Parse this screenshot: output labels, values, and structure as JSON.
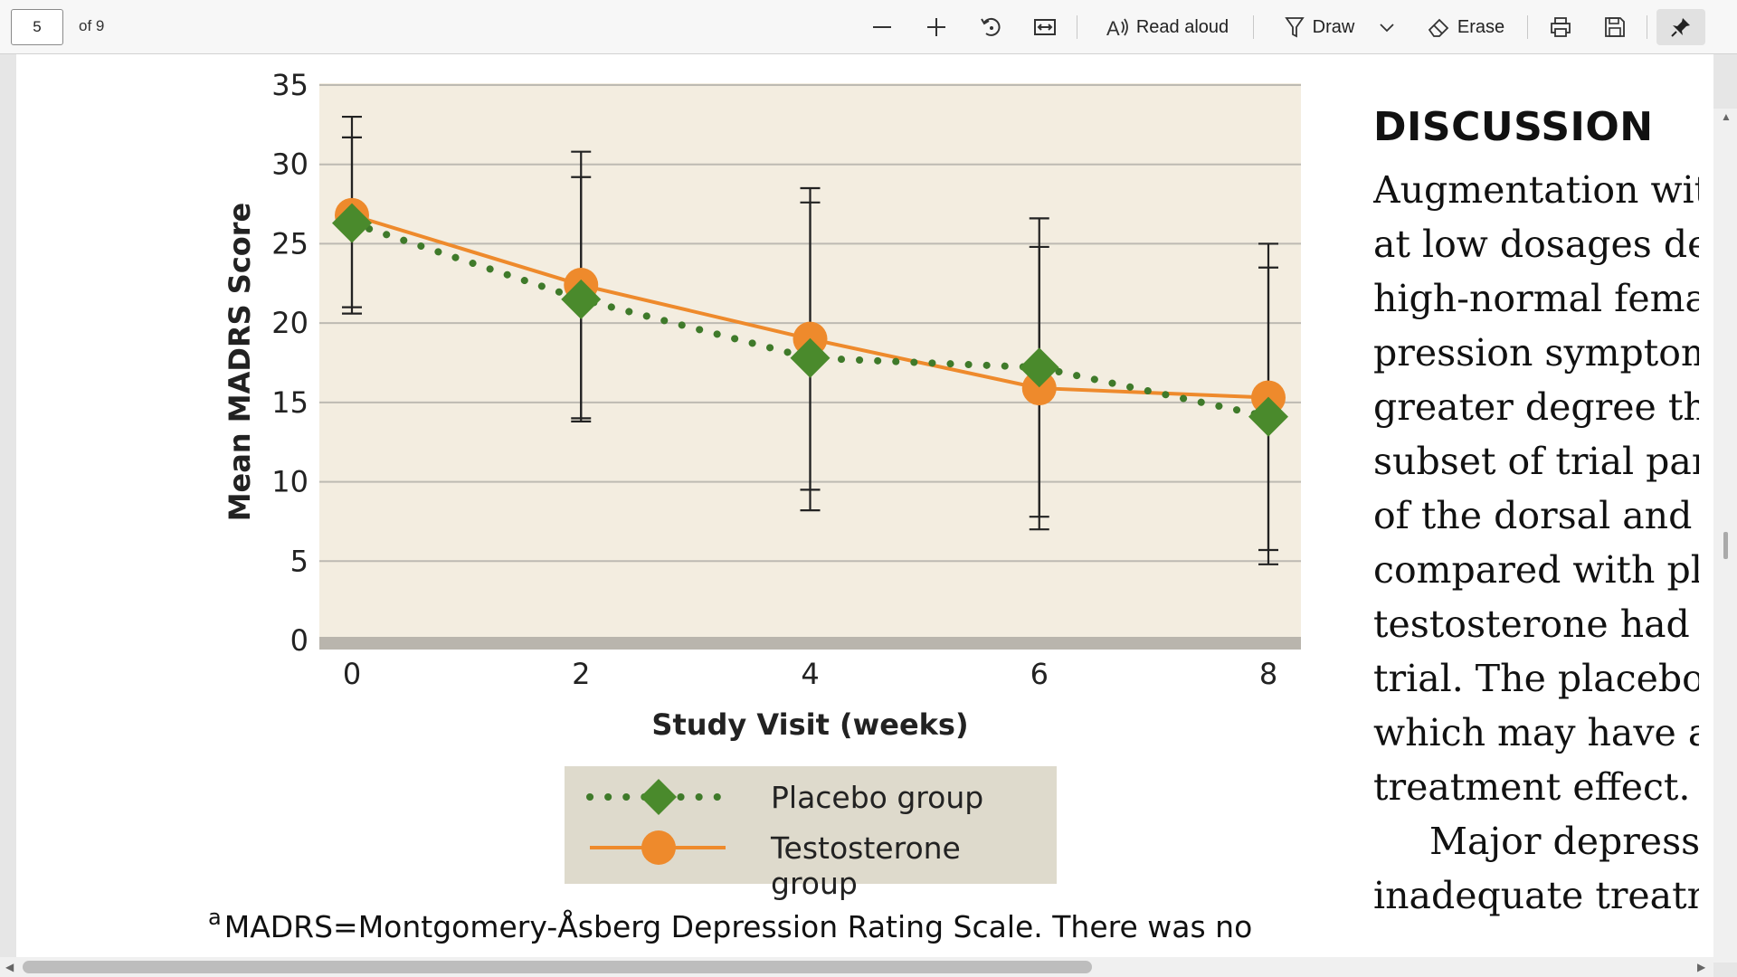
{
  "toolbar": {
    "page_number": "5",
    "page_of": "of 9",
    "zoom_out_icon": "minus-icon",
    "zoom_in_icon": "plus-icon",
    "rotate_icon": "rotate-icon",
    "fit_icon": "fit-width-icon",
    "read_aloud_label": "Read aloud",
    "draw_label": "Draw",
    "erase_label": "Erase",
    "print_icon": "printer-icon",
    "save_icon": "save-icon",
    "pin_icon": "pin-icon"
  },
  "chart_data": {
    "type": "line",
    "x": [
      0,
      2,
      4,
      6,
      8
    ],
    "xlabel": "Study Visit (weeks)",
    "ylabel": "Mean MADRS Score",
    "ylim": [
      0,
      35
    ],
    "yticks": [
      0,
      5,
      10,
      15,
      20,
      25,
      30,
      35
    ],
    "xticks": [
      0,
      2,
      4,
      6,
      8
    ],
    "grid": true,
    "series": [
      {
        "name": "Testosterone group",
        "color": "#ee8a2c",
        "marker": "circle",
        "line": "solid",
        "values": [
          26.8,
          22.4,
          19.0,
          15.9,
          15.3
        ],
        "error_bars": [
          [
            20.6,
            33.0
          ],
          [
            13.8,
            30.8
          ],
          [
            8.2,
            28.5
          ],
          [
            7.0,
            26.6
          ],
          [
            4.8,
            25.0
          ]
        ]
      },
      {
        "name": "Placebo group",
        "color": "#4a8a2c",
        "marker": "diamond",
        "line": "dotted",
        "values": [
          26.3,
          21.5,
          17.8,
          17.2,
          14.1
        ],
        "error_bars": [
          [
            21.0,
            31.7
          ],
          [
            14.0,
            29.2
          ],
          [
            9.5,
            27.6
          ],
          [
            7.8,
            24.8
          ],
          [
            5.7,
            23.5
          ]
        ]
      }
    ],
    "legend_position": "bottom"
  },
  "footnote": {
    "marker": "a",
    "text": "MADRS=Montgomery-Åsberg Depression Rating Scale. There was no"
  },
  "discussion": {
    "heading": "DISCUSSION",
    "lines": [
      "Augmentation witl",
      "at low dosages desi",
      "high-normal  femal",
      "pression symptom :",
      "greater degree thar",
      "subset of trial partic",
      "of the dorsal and pr",
      "compared with pla",
      "testosterone had  a",
      "trial. The placebo r",
      "which may have ac",
      "treatment effect.",
      "Major depressic",
      "inadequate  treatm"
    ]
  },
  "colors": {
    "plot_background": "#f3ede0",
    "legend_background": "#dedacc",
    "grid": "#bdbab2",
    "baseline": "#b9b5ad"
  }
}
